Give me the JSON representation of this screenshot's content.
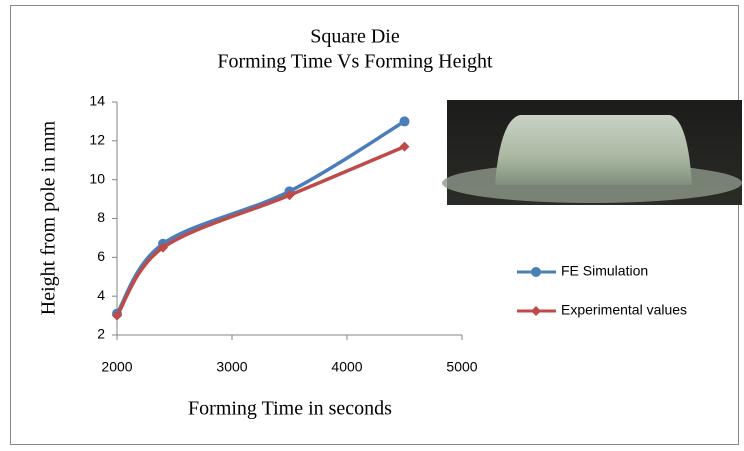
{
  "chart_data": {
    "type": "line",
    "title": "Square Die",
    "subtitle": "Forming Time Vs Forming Height",
    "x_label": "Forming Time in seconds",
    "y_label": "Height from pole in mm",
    "x": [
      2000,
      2400,
      3500,
      4500
    ],
    "series": [
      {
        "name": "FE Simulation",
        "color": "#4a7ebb",
        "marker": "circle",
        "values": [
          3.1,
          6.7,
          9.4,
          13.0
        ]
      },
      {
        "name": "Experimental values",
        "color": "#be4b48",
        "marker": "diamond",
        "values": [
          3.0,
          6.5,
          9.2,
          11.7
        ]
      }
    ],
    "xlim": [
      2000,
      5000
    ],
    "xticks": [
      2000,
      3000,
      4000,
      5000
    ],
    "ylim": [
      2,
      14
    ],
    "yticks": [
      2,
      4,
      6,
      8,
      10,
      12,
      14
    ],
    "grid": false,
    "smooth": true,
    "legend": "right"
  }
}
